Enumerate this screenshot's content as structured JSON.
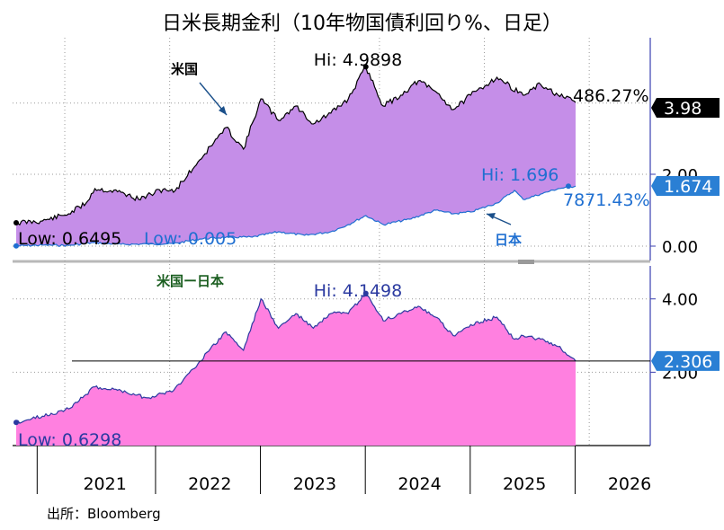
{
  "title": "日米長期金利（10年物国債利回り%、日足）",
  "source": "出所：Bloomberg",
  "colors": {
    "us_fill": "#c58ee8",
    "us_line": "#000000",
    "jp_line": "#1f6fd1",
    "spread_fill": "#ff80e0",
    "spread_line": "#2b3aa0",
    "badge_us": "#000000",
    "badge_jp": "#2a7fd4",
    "axis": "#3a3fb0"
  },
  "chart_data": [
    {
      "type": "area",
      "panel": "upper",
      "title": "",
      "ylim": [
        -0.4,
        5.8
      ],
      "yticks": [
        "0.00",
        "2.00"
      ],
      "xlabels": [
        "2021",
        "2022",
        "2023",
        "2024",
        "2025",
        "2026"
      ],
      "grid": true,
      "series": [
        {
          "name": "米国",
          "type": "area",
          "x": [
            "2020-06",
            "2020-09",
            "2020-12",
            "2021-02",
            "2021-03",
            "2021-06",
            "2021-08",
            "2021-11",
            "2021-12",
            "2022-01",
            "2022-03",
            "2022-05",
            "2022-06",
            "2022-08",
            "2022-10",
            "2022-12",
            "2023-02",
            "2023-04",
            "2023-06",
            "2023-08",
            "2023-10",
            "2023-12",
            "2024-02",
            "2024-04",
            "2024-06",
            "2024-08",
            "2024-10",
            "2025-01",
            "2025-04",
            "2025-06",
            "2025-08",
            "2025-10"
          ],
          "values": [
            0.65,
            0.7,
            0.9,
            1.2,
            1.6,
            1.5,
            1.3,
            1.6,
            1.5,
            1.8,
            2.4,
            3.0,
            3.3,
            2.7,
            4.1,
            3.5,
            3.9,
            3.4,
            3.7,
            4.1,
            4.99,
            3.9,
            4.2,
            4.6,
            4.3,
            3.8,
            4.2,
            4.7,
            4.2,
            4.5,
            4.2,
            4.0
          ]
        },
        {
          "name": "日本",
          "type": "line",
          "x": [
            "2020-06",
            "2020-09",
            "2020-12",
            "2021-03",
            "2021-06",
            "2021-09",
            "2021-12",
            "2022-03",
            "2022-06",
            "2022-09",
            "2022-12",
            "2023-03",
            "2023-06",
            "2023-08",
            "2023-10",
            "2023-12",
            "2024-03",
            "2024-06",
            "2024-08",
            "2024-10",
            "2025-01",
            "2025-03",
            "2025-04",
            "2025-06",
            "2025-08",
            "2025-10"
          ],
          "values": [
            0.005,
            0.03,
            0.02,
            0.1,
            0.05,
            0.06,
            0.07,
            0.2,
            0.25,
            0.25,
            0.4,
            0.3,
            0.4,
            0.6,
            0.85,
            0.6,
            0.75,
            1.0,
            0.9,
            0.95,
            1.2,
            1.55,
            1.3,
            1.45,
            1.6,
            1.67
          ]
        }
      ],
      "annotations": [
        {
          "label": "Hi: 4.9898",
          "series": "米国"
        },
        {
          "label": "Low: 0.6495",
          "series": "米国"
        },
        {
          "label": "486.27%",
          "series": "米国"
        },
        {
          "label": "Hi: 1.696",
          "series": "日本"
        },
        {
          "label": "Low: 0.005",
          "series": "日本"
        },
        {
          "label": "7871.43%",
          "series": "日本"
        }
      ],
      "badges": [
        {
          "label": "3.98",
          "series": "米国"
        },
        {
          "label": "1.674",
          "series": "日本"
        }
      ],
      "series_labels": [
        {
          "label": "米国",
          "series": "米国"
        },
        {
          "label": "日本",
          "series": "日本"
        }
      ]
    },
    {
      "type": "area",
      "panel": "lower",
      "title": "",
      "ylim": [
        0.0,
        4.9
      ],
      "yticks": [
        "2.00",
        "4.00"
      ],
      "xlabels": [
        "2021",
        "2022",
        "2023",
        "2024",
        "2025",
        "2026"
      ],
      "reference_line": 2.306,
      "series": [
        {
          "name": "米国ー日本",
          "type": "area",
          "x": [
            "2020-06",
            "2020-09",
            "2020-12",
            "2021-03",
            "2021-06",
            "2021-09",
            "2021-12",
            "2022-03",
            "2022-06",
            "2022-08",
            "2022-10",
            "2022-12",
            "2023-02",
            "2023-04",
            "2023-06",
            "2023-08",
            "2023-10",
            "2023-12",
            "2024-02",
            "2024-04",
            "2024-06",
            "2024-08",
            "2024-10",
            "2025-01",
            "2025-03",
            "2025-04",
            "2025-06",
            "2025-08",
            "2025-10"
          ],
          "values": [
            0.63,
            0.8,
            1.0,
            1.6,
            1.5,
            1.3,
            1.5,
            2.3,
            3.1,
            2.6,
            4.0,
            3.2,
            3.6,
            3.2,
            3.6,
            3.6,
            4.15,
            3.4,
            3.6,
            3.8,
            3.5,
            3.0,
            3.3,
            3.5,
            2.9,
            3.0,
            2.9,
            2.7,
            2.306
          ]
        }
      ],
      "annotations": [
        {
          "label": "Hi: 4.1498",
          "series": "米国ー日本"
        },
        {
          "label": "Low: 0.6298",
          "series": "米国ー日本"
        }
      ],
      "badges": [
        {
          "label": "2.306",
          "series": "米国ー日本"
        }
      ],
      "series_labels": [
        {
          "label": "米国ー日本",
          "series": "米国ー日本"
        }
      ]
    }
  ]
}
